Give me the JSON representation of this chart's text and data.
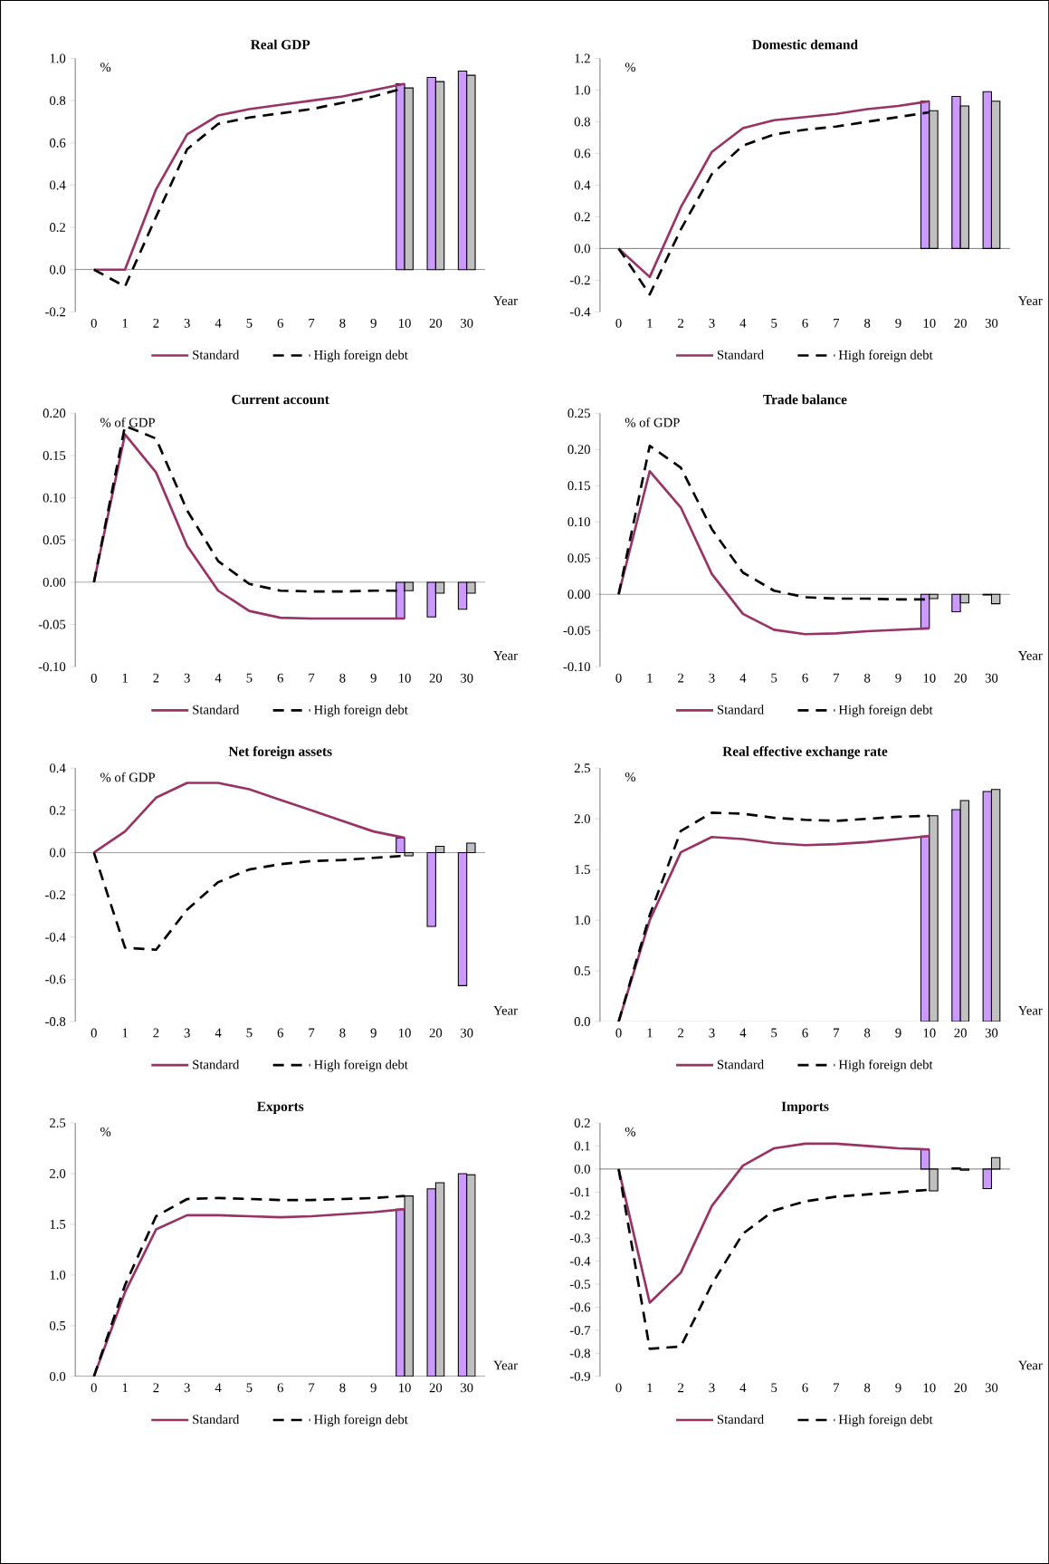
{
  "chart_data": [
    {
      "type": "line",
      "title": "Real GDP",
      "ylabel": "%",
      "xlabel": "Year",
      "categories": [
        "0",
        "1",
        "2",
        "3",
        "4",
        "5",
        "6",
        "7",
        "8",
        "9",
        "10",
        "20",
        "30"
      ],
      "ylim": [
        -0.2,
        1.0
      ],
      "yticks": [
        {
          "value": -0.2,
          "label": "-0.2"
        },
        {
          "value": 0,
          "label": "0.0"
        },
        {
          "value": 0.2,
          "label": "0.2"
        },
        {
          "value": 0.4,
          "label": "0.4"
        },
        {
          "value": 0.6,
          "label": "0.6"
        },
        {
          "value": 0.8,
          "label": "0.8"
        },
        {
          "value": 1.0,
          "label": "1.0"
        }
      ],
      "legend": "bottom",
      "series": [
        {
          "type": "bar",
          "color": "#cc99ff",
          "values": [
            null,
            null,
            null,
            null,
            null,
            null,
            null,
            null,
            null,
            null,
            0.88,
            0.91,
            0.94
          ]
        },
        {
          "type": "bar",
          "color": "#c0c0c0",
          "values": [
            null,
            null,
            null,
            null,
            null,
            null,
            null,
            null,
            null,
            null,
            0.86,
            0.89,
            0.92
          ]
        },
        {
          "name": "Standard",
          "color": "#993366",
          "line_style": "solid",
          "values": [
            0,
            0.0,
            0.38,
            0.64,
            0.73,
            0.76,
            0.78,
            0.8,
            0.82,
            0.85,
            0.88,
            null,
            null
          ]
        },
        {
          "name": "High foreign debt",
          "color": "#000000",
          "line_style": "dashed",
          "values": [
            0,
            -0.08,
            0.25,
            0.57,
            0.69,
            0.72,
            0.74,
            0.76,
            0.79,
            0.82,
            0.86,
            null,
            null
          ]
        }
      ]
    },
    {
      "type": "line",
      "title": "Domestic demand",
      "ylabel": "%",
      "xlabel": "Year",
      "categories": [
        "0",
        "1",
        "2",
        "3",
        "4",
        "5",
        "6",
        "7",
        "8",
        "9",
        "10",
        "20",
        "30"
      ],
      "ylim": [
        -0.4,
        1.2
      ],
      "yticks": [
        {
          "value": -0.4,
          "label": "-0.4"
        },
        {
          "value": -0.2,
          "label": "-0.2"
        },
        {
          "value": 0,
          "label": "0.0"
        },
        {
          "value": 0.2,
          "label": "0.2"
        },
        {
          "value": 0.4,
          "label": "0.4"
        },
        {
          "value": 0.6,
          "label": "0.6"
        },
        {
          "value": 0.8,
          "label": "0.8"
        },
        {
          "value": 1.0,
          "label": "1.0"
        },
        {
          "value": 1.2,
          "label": "1.2"
        }
      ],
      "legend": "bottom",
      "series": [
        {
          "type": "bar",
          "color": "#cc99ff",
          "values": [
            null,
            null,
            null,
            null,
            null,
            null,
            null,
            null,
            null,
            null,
            0.93,
            0.96,
            0.99
          ]
        },
        {
          "type": "bar",
          "color": "#c0c0c0",
          "values": [
            null,
            null,
            null,
            null,
            null,
            null,
            null,
            null,
            null,
            null,
            0.87,
            0.9,
            0.93
          ]
        },
        {
          "name": "Standard",
          "color": "#993366",
          "line_style": "solid",
          "values": [
            0,
            -0.18,
            0.26,
            0.61,
            0.76,
            0.81,
            0.83,
            0.85,
            0.88,
            0.9,
            0.93,
            null,
            null
          ]
        },
        {
          "name": "High foreign debt",
          "color": "#000000",
          "line_style": "dashed",
          "values": [
            0,
            -0.29,
            0.12,
            0.47,
            0.65,
            0.72,
            0.75,
            0.77,
            0.8,
            0.83,
            0.86,
            null,
            null
          ]
        }
      ]
    },
    {
      "type": "line",
      "title": "Current account",
      "ylabel": "% of GDP",
      "xlabel": "Year",
      "categories": [
        "0",
        "1",
        "2",
        "3",
        "4",
        "5",
        "6",
        "7",
        "8",
        "9",
        "10",
        "20",
        "30"
      ],
      "ylim": [
        -0.1,
        0.2
      ],
      "yticks": [
        {
          "value": -0.1,
          "label": "-0.10"
        },
        {
          "value": -0.05,
          "label": "-0.05"
        },
        {
          "value": 0,
          "label": "0.00"
        },
        {
          "value": 0.05,
          "label": "0.05"
        },
        {
          "value": 0.1,
          "label": "0.10"
        },
        {
          "value": 0.15,
          "label": "0.15"
        },
        {
          "value": 0.2,
          "label": "0.20"
        }
      ],
      "legend": "bottom",
      "series": [
        {
          "type": "bar",
          "color": "#cc99ff",
          "values": [
            null,
            null,
            null,
            null,
            null,
            null,
            null,
            null,
            null,
            null,
            -0.043,
            -0.041,
            -0.032
          ]
        },
        {
          "type": "bar",
          "color": "#c0c0c0",
          "values": [
            null,
            null,
            null,
            null,
            null,
            null,
            null,
            null,
            null,
            null,
            -0.01,
            -0.013,
            -0.013
          ]
        },
        {
          "name": "Standard",
          "color": "#993366",
          "line_style": "solid",
          "values": [
            0,
            0.175,
            0.13,
            0.043,
            -0.01,
            -0.034,
            -0.042,
            -0.043,
            -0.043,
            -0.043,
            -0.043,
            null,
            null
          ]
        },
        {
          "name": "High foreign debt",
          "color": "#000000",
          "line_style": "dashed",
          "values": [
            0,
            0.185,
            0.17,
            0.085,
            0.025,
            -0.002,
            -0.01,
            -0.011,
            -0.011,
            -0.01,
            -0.01,
            null,
            null
          ]
        }
      ]
    },
    {
      "type": "line",
      "title": "Trade balance",
      "ylabel": "% of GDP",
      "xlabel": "Year",
      "categories": [
        "0",
        "1",
        "2",
        "3",
        "4",
        "5",
        "6",
        "7",
        "8",
        "9",
        "10",
        "20",
        "30"
      ],
      "ylim": [
        -0.1,
        0.25
      ],
      "yticks": [
        {
          "value": -0.1,
          "label": "-0.10"
        },
        {
          "value": -0.05,
          "label": "-0.05"
        },
        {
          "value": 0,
          "label": "0.00"
        },
        {
          "value": 0.05,
          "label": "0.05"
        },
        {
          "value": 0.1,
          "label": "0.10"
        },
        {
          "value": 0.15,
          "label": "0.15"
        },
        {
          "value": 0.2,
          "label": "0.20"
        },
        {
          "value": 0.25,
          "label": "0.25"
        }
      ],
      "legend": "bottom",
      "series": [
        {
          "type": "bar",
          "color": "#cc99ff",
          "values": [
            null,
            null,
            null,
            null,
            null,
            null,
            null,
            null,
            null,
            null,
            -0.047,
            -0.024,
            -0.001
          ]
        },
        {
          "type": "bar",
          "color": "#c0c0c0",
          "values": [
            null,
            null,
            null,
            null,
            null,
            null,
            null,
            null,
            null,
            null,
            -0.006,
            -0.012,
            -0.013
          ]
        },
        {
          "name": "Standard",
          "color": "#993366",
          "line_style": "solid",
          "values": [
            0,
            0.17,
            0.12,
            0.028,
            -0.027,
            -0.049,
            -0.055,
            -0.054,
            -0.051,
            -0.049,
            -0.047,
            null,
            null
          ]
        },
        {
          "name": "High foreign debt",
          "color": "#000000",
          "line_style": "dashed",
          "values": [
            0,
            0.205,
            0.175,
            0.09,
            0.03,
            0.005,
            -0.004,
            -0.006,
            -0.006,
            -0.007,
            -0.007,
            null,
            null
          ]
        }
      ]
    },
    {
      "type": "line",
      "title": "Net foreign assets",
      "ylabel": "% of GDP",
      "xlabel": "Year",
      "categories": [
        "0",
        "1",
        "2",
        "3",
        "4",
        "5",
        "6",
        "7",
        "8",
        "9",
        "10",
        "20",
        "30"
      ],
      "ylim": [
        -0.8,
        0.4
      ],
      "yticks": [
        {
          "value": -0.8,
          "label": "-0.8"
        },
        {
          "value": -0.6,
          "label": "-0.6"
        },
        {
          "value": -0.4,
          "label": "-0.4"
        },
        {
          "value": -0.2,
          "label": "-0.2"
        },
        {
          "value": 0,
          "label": "0.0"
        },
        {
          "value": 0.2,
          "label": "0.2"
        },
        {
          "value": 0.4,
          "label": "0.4"
        }
      ],
      "legend": "bottom",
      "series": [
        {
          "type": "bar",
          "color": "#cc99ff",
          "values": [
            null,
            null,
            null,
            null,
            null,
            null,
            null,
            null,
            null,
            null,
            0.07,
            -0.35,
            -0.63
          ]
        },
        {
          "type": "bar",
          "color": "#c0c0c0",
          "values": [
            null,
            null,
            null,
            null,
            null,
            null,
            null,
            null,
            null,
            null,
            -0.015,
            0.03,
            0.045
          ]
        },
        {
          "name": "Standard",
          "color": "#993366",
          "line_style": "solid",
          "values": [
            0,
            0.1,
            0.26,
            0.33,
            0.33,
            0.3,
            0.25,
            0.2,
            0.15,
            0.1,
            0.07,
            null,
            null
          ]
        },
        {
          "name": "High foreign debt",
          "color": "#000000",
          "line_style": "dashed",
          "values": [
            0,
            -0.45,
            -0.46,
            -0.27,
            -0.14,
            -0.08,
            -0.055,
            -0.04,
            -0.035,
            -0.025,
            -0.015,
            null,
            null
          ]
        }
      ]
    },
    {
      "type": "line",
      "title": "Real effective exchange rate",
      "ylabel": "%",
      "xlabel": "Year",
      "categories": [
        "0",
        "1",
        "2",
        "3",
        "4",
        "5",
        "6",
        "7",
        "8",
        "9",
        "10",
        "20",
        "30"
      ],
      "ylim": [
        0,
        2.5
      ],
      "yticks": [
        {
          "value": 0,
          "label": "0.0"
        },
        {
          "value": 0.5,
          "label": "0.5"
        },
        {
          "value": 1.0,
          "label": "1.0"
        },
        {
          "value": 1.5,
          "label": "1.5"
        },
        {
          "value": 2.0,
          "label": "2.0"
        },
        {
          "value": 2.5,
          "label": "2.5"
        }
      ],
      "legend": "bottom",
      "series": [
        {
          "type": "bar",
          "color": "#cc99ff",
          "values": [
            null,
            null,
            null,
            null,
            null,
            null,
            null,
            null,
            null,
            null,
            1.83,
            2.09,
            2.27
          ]
        },
        {
          "type": "bar",
          "color": "#c0c0c0",
          "values": [
            null,
            null,
            null,
            null,
            null,
            null,
            null,
            null,
            null,
            null,
            2.03,
            2.18,
            2.29
          ]
        },
        {
          "name": "Standard",
          "color": "#993366",
          "line_style": "solid",
          "values": [
            0,
            1.0,
            1.67,
            1.82,
            1.8,
            1.76,
            1.74,
            1.75,
            1.77,
            1.8,
            1.83,
            null,
            null
          ]
        },
        {
          "name": "High foreign debt",
          "color": "#000000",
          "line_style": "dashed",
          "values": [
            0,
            1.05,
            1.88,
            2.06,
            2.05,
            2.01,
            1.99,
            1.98,
            2.0,
            2.02,
            2.03,
            null,
            null
          ]
        }
      ]
    },
    {
      "type": "line",
      "title": "Exports",
      "ylabel": "%",
      "xlabel": "Year",
      "categories": [
        "0",
        "1",
        "2",
        "3",
        "4",
        "5",
        "6",
        "7",
        "8",
        "9",
        "10",
        "20",
        "30"
      ],
      "ylim": [
        0,
        2.5
      ],
      "yticks": [
        {
          "value": 0,
          "label": "0.0"
        },
        {
          "value": 0.5,
          "label": "0.5"
        },
        {
          "value": 1.0,
          "label": "1.0"
        },
        {
          "value": 1.5,
          "label": "1.5"
        },
        {
          "value": 2.0,
          "label": "2.0"
        },
        {
          "value": 2.5,
          "label": "2.5"
        }
      ],
      "legend": "bottom",
      "series": [
        {
          "type": "bar",
          "color": "#cc99ff",
          "values": [
            null,
            null,
            null,
            null,
            null,
            null,
            null,
            null,
            null,
            null,
            1.65,
            1.85,
            2.0
          ]
        },
        {
          "type": "bar",
          "color": "#c0c0c0",
          "values": [
            null,
            null,
            null,
            null,
            null,
            null,
            null,
            null,
            null,
            null,
            1.78,
            1.91,
            1.99
          ]
        },
        {
          "name": "Standard",
          "color": "#993366",
          "line_style": "solid",
          "values": [
            0,
            0.83,
            1.45,
            1.59,
            1.59,
            1.58,
            1.57,
            1.58,
            1.6,
            1.62,
            1.65,
            null,
            null
          ]
        },
        {
          "name": "High foreign debt",
          "color": "#000000",
          "line_style": "dashed",
          "values": [
            0,
            0.9,
            1.58,
            1.75,
            1.76,
            1.75,
            1.74,
            1.74,
            1.75,
            1.76,
            1.78,
            null,
            null
          ]
        }
      ]
    },
    {
      "type": "line",
      "title": "Imports",
      "ylabel": "%",
      "xlabel": "Year",
      "categories": [
        "0",
        "1",
        "2",
        "3",
        "4",
        "5",
        "6",
        "7",
        "8",
        "9",
        "10",
        "20",
        "30"
      ],
      "ylim": [
        -0.9,
        0.2
      ],
      "yticks": [
        {
          "value": -0.9,
          "label": "-0.9"
        },
        {
          "value": -0.8,
          "label": "-0.8"
        },
        {
          "value": -0.7,
          "label": "-0.7"
        },
        {
          "value": -0.6,
          "label": "-0.6"
        },
        {
          "value": -0.5,
          "label": "-0.5"
        },
        {
          "value": -0.4,
          "label": "-0.4"
        },
        {
          "value": -0.3,
          "label": "-0.3"
        },
        {
          "value": -0.2,
          "label": "-0.2"
        },
        {
          "value": -0.1,
          "label": "-0.1"
        },
        {
          "value": 0,
          "label": "0.0"
        },
        {
          "value": 0.1,
          "label": "0.1"
        },
        {
          "value": 0.2,
          "label": "0.2"
        }
      ],
      "legend": "bottom",
      "series": [
        {
          "type": "bar",
          "color": "#cc99ff",
          "values": [
            null,
            null,
            null,
            null,
            null,
            null,
            null,
            null,
            null,
            null,
            0.085,
            0.005,
            -0.085
          ]
        },
        {
          "type": "bar",
          "color": "#c0c0c0",
          "values": [
            null,
            null,
            null,
            null,
            null,
            null,
            null,
            null,
            null,
            null,
            -0.095,
            -0.005,
            0.05
          ]
        },
        {
          "name": "Standard",
          "color": "#993366",
          "line_style": "solid",
          "values": [
            0,
            -0.58,
            -0.45,
            -0.16,
            0.015,
            0.09,
            0.11,
            0.11,
            0.1,
            0.09,
            0.085,
            null,
            null
          ]
        },
        {
          "name": "High foreign debt",
          "color": "#000000",
          "line_style": "dashed",
          "values": [
            0,
            -0.78,
            -0.77,
            -0.5,
            -0.28,
            -0.18,
            -0.14,
            -0.12,
            -0.11,
            -0.1,
            -0.09,
            null,
            null
          ]
        }
      ]
    }
  ]
}
